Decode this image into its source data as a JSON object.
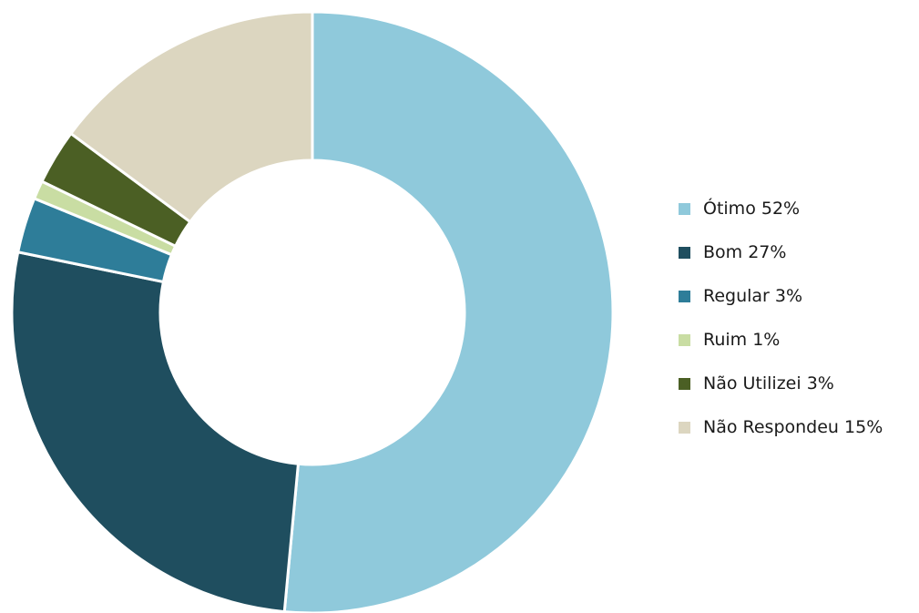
{
  "chart_data": {
    "type": "pie",
    "title": "",
    "slices": [
      {
        "label": "Ótimo",
        "value": 52,
        "color": "#8FC9DB"
      },
      {
        "label": "Bom",
        "value": 27,
        "color": "#1F4E5F"
      },
      {
        "label": "Regular",
        "value": 3,
        "color": "#2E7D99"
      },
      {
        "label": "Ruim",
        "value": 1,
        "color": "#C9DDA3"
      },
      {
        "label": "Não Utilizei",
        "value": 3,
        "color": "#4B5F24"
      },
      {
        "label": "Não Respondeu",
        "value": 15,
        "color": "#DCD6C0"
      }
    ]
  },
  "legend": {
    "placement": "right",
    "items": [
      {
        "text": "Ótimo 52%",
        "color": "#8FC9DB"
      },
      {
        "text": "Bom 27%",
        "color": "#1F4E5F"
      },
      {
        "text": "Regular 3%",
        "color": "#2E7D99"
      },
      {
        "text": "Ruim 1%",
        "color": "#C9DDA3"
      },
      {
        "text": "Não Utilizei 3%",
        "color": "#4B5F24"
      },
      {
        "text": "Não Respondeu 15%",
        "color": "#DCD6C0"
      }
    ]
  }
}
